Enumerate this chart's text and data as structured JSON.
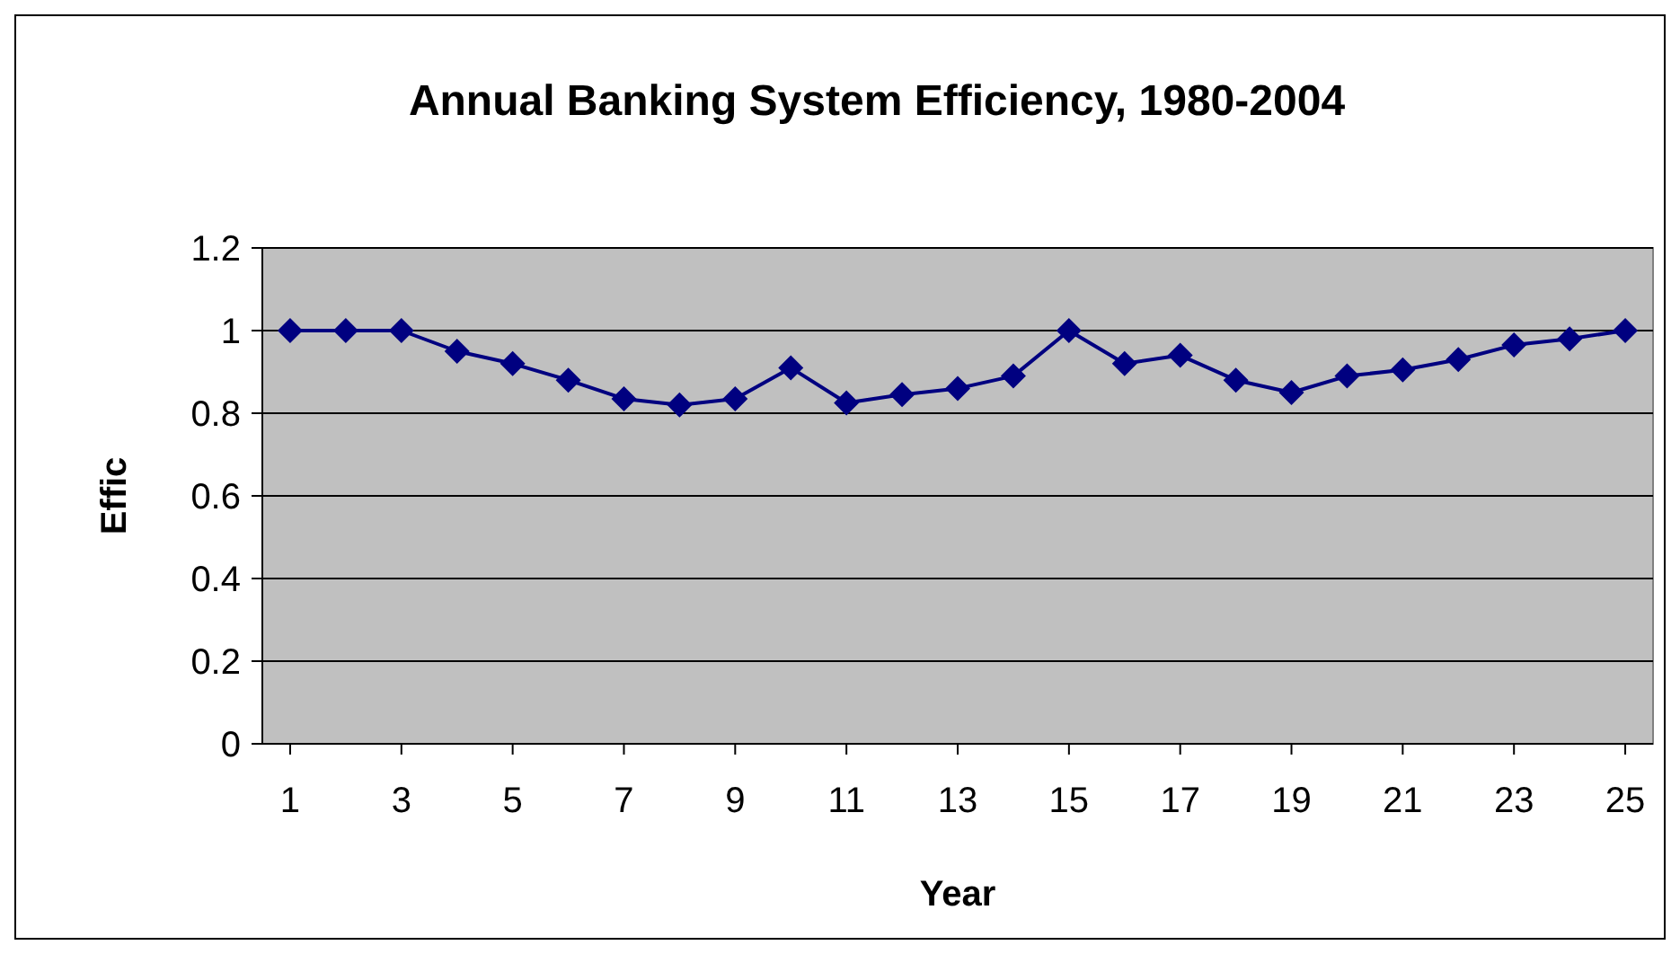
{
  "chart_data": {
    "type": "line",
    "title": "Annual Banking System Efficiency, 1980-2004",
    "xlabel": "Year",
    "ylabel": "Effic",
    "x": [
      1,
      2,
      3,
      4,
      5,
      6,
      7,
      8,
      9,
      10,
      11,
      12,
      13,
      14,
      15,
      16,
      17,
      18,
      19,
      20,
      21,
      22,
      23,
      24,
      25
    ],
    "xlim": [
      0.5,
      25.5
    ],
    "xticks": [
      1,
      3,
      5,
      7,
      9,
      11,
      13,
      15,
      17,
      19,
      21,
      23,
      25
    ],
    "series": [
      {
        "color": "#000080",
        "values": [
          1,
          1,
          1,
          0.95,
          0.92,
          0.88,
          0.835,
          0.82,
          0.835,
          0.91,
          0.825,
          0.845,
          0.86,
          0.89,
          1,
          0.92,
          0.94,
          0.88,
          0.85,
          0.89,
          0.905,
          0.93,
          0.965,
          0.98,
          1
        ]
      }
    ],
    "ylim": [
      0,
      1.2
    ],
    "yticks": [
      0,
      0.2,
      0.4,
      0.6,
      0.8,
      1,
      1.2
    ],
    "grid": "y",
    "marker": "diamond"
  }
}
